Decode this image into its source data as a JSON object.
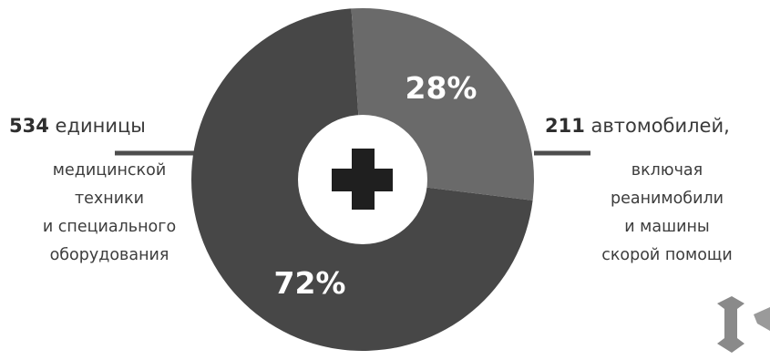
{
  "colors": {
    "dark_segment": "#474747",
    "light_segment": "#6a6a6a",
    "connector": "#4d4d4d",
    "cross": "#1f1f1f",
    "pct_text": "#ffffff"
  },
  "left": {
    "number": "534",
    "title": " единицы",
    "lines": [
      "медицинской",
      "техники",
      "и специального",
      "оборудования"
    ]
  },
  "right": {
    "number": "211",
    "title": " автомобилей,",
    "lines": [
      "включая",
      "реанимобили",
      "и машины",
      "скорой помощи"
    ]
  },
  "chart_data": {
    "type": "pie",
    "donut": true,
    "slices": [
      {
        "value": 72,
        "label": "72%"
      },
      {
        "value": 28,
        "label": "28%"
      }
    ],
    "center_icon": "medical-cross-icon"
  }
}
